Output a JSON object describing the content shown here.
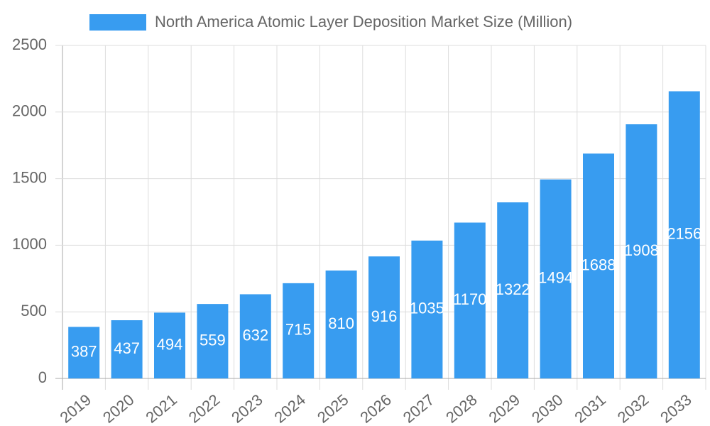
{
  "chart_data": {
    "type": "bar",
    "categories": [
      "2019",
      "2020",
      "2021",
      "2022",
      "2023",
      "2024",
      "2025",
      "2026",
      "2027",
      "2028",
      "2029",
      "2030",
      "2031",
      "2032",
      "2033"
    ],
    "series": [
      {
        "name": "North America Atomic Layer Deposition Market Size (Million)",
        "color": "#389cf0",
        "values": [
          387,
          437,
          494,
          559,
          632,
          715,
          810,
          916,
          1035,
          1170,
          1322,
          1494,
          1688,
          1908,
          2156
        ]
      }
    ],
    "ylim": [
      0,
      2500
    ],
    "yticks": [
      0,
      500,
      1000,
      1500,
      2000,
      2500
    ],
    "grid": true,
    "legend": "top"
  }
}
